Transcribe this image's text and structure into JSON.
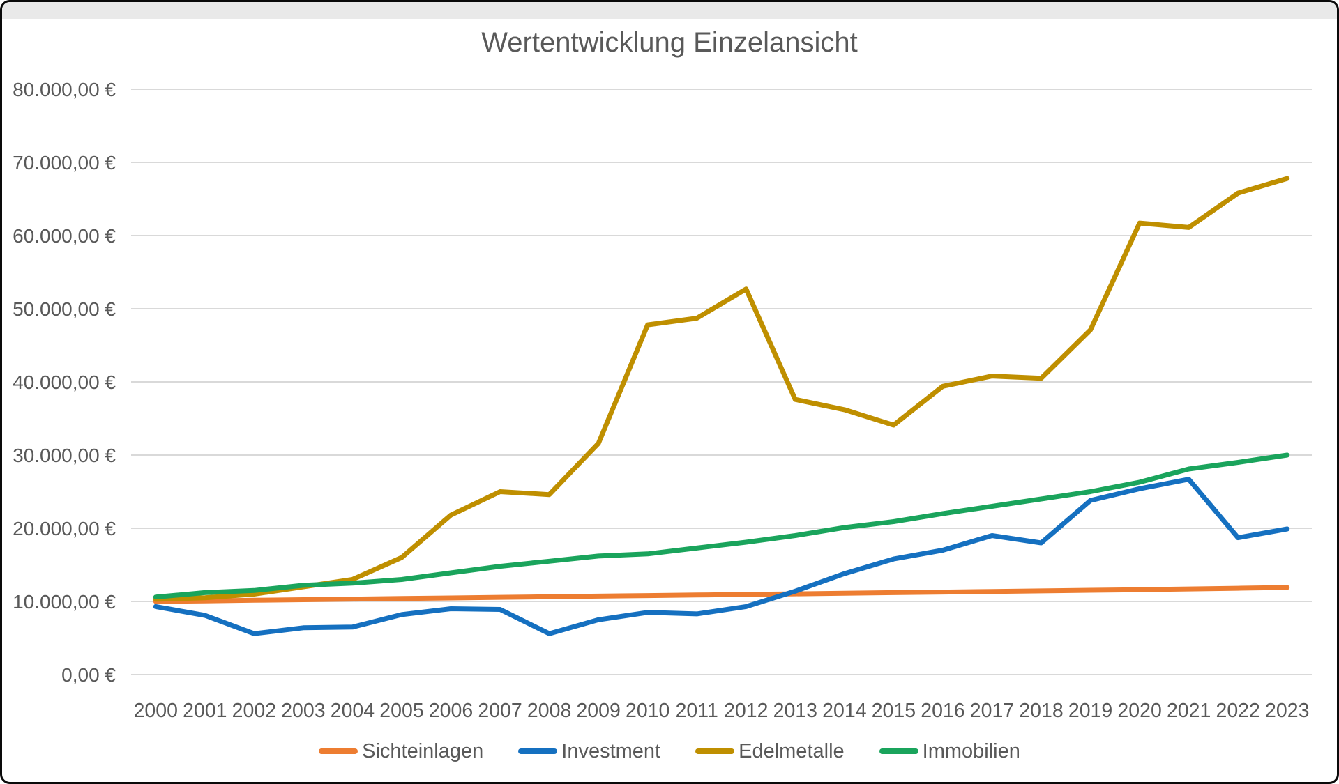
{
  "chart_data": {
    "type": "line",
    "title": "Wertentwicklung Einzelansicht",
    "x_categories": [
      "2000",
      "2001",
      "2002",
      "2003",
      "2004",
      "2005",
      "2006",
      "2007",
      "2008",
      "2009",
      "2010",
      "2011",
      "2012",
      "2013",
      "2014",
      "2015",
      "2016",
      "2017",
      "2018",
      "2019",
      "2020",
      "2021",
      "2022",
      "2023"
    ],
    "y_tick_labels": [
      "0,00 €",
      "10.000,00 €",
      "20.000,00 €",
      "30.000,00 €",
      "40.000,00 €",
      "50.000,00 €",
      "60.000,00 €",
      "70.000,00 €",
      "80.000,00 €"
    ],
    "ylim": [
      0,
      80000
    ],
    "grid": "horizontal",
    "legend_position": "bottom-center",
    "series": [
      {
        "name": "Sichteinlagen",
        "color": "#ED7D31",
        "values": [
          10000,
          10080,
          10160,
          10240,
          10320,
          10400,
          10480,
          10560,
          10640,
          10720,
          10800,
          10880,
          10960,
          11040,
          11120,
          11200,
          11280,
          11360,
          11440,
          11520,
          11600,
          11700,
          11800,
          11900
        ]
      },
      {
        "name": "Investment",
        "color": "#1570C0",
        "values": [
          9300,
          8100,
          5600,
          6400,
          6500,
          8200,
          9000,
          8900,
          5600,
          7500,
          8500,
          8300,
          9300,
          11400,
          13800,
          15800,
          17000,
          19000,
          18000,
          23800,
          25400,
          26700,
          18700,
          19900
        ]
      },
      {
        "name": "Edelmetalle",
        "color": "#BF8F00",
        "values": [
          10300,
          10500,
          11000,
          12000,
          13000,
          16000,
          21800,
          25000,
          24600,
          31600,
          47800,
          48700,
          52700,
          37600,
          36200,
          34100,
          39400,
          40800,
          40500,
          47100,
          61700,
          61100,
          65800,
          67800
        ]
      },
      {
        "name": "Immobilien",
        "color": "#1AA45C",
        "values": [
          10600,
          11200,
          11500,
          12200,
          12500,
          13000,
          13900,
          14800,
          15500,
          16200,
          16500,
          17300,
          18100,
          19000,
          20100,
          20900,
          22000,
          23000,
          24000,
          25000,
          26300,
          28100,
          29000,
          30000
        ]
      }
    ]
  }
}
